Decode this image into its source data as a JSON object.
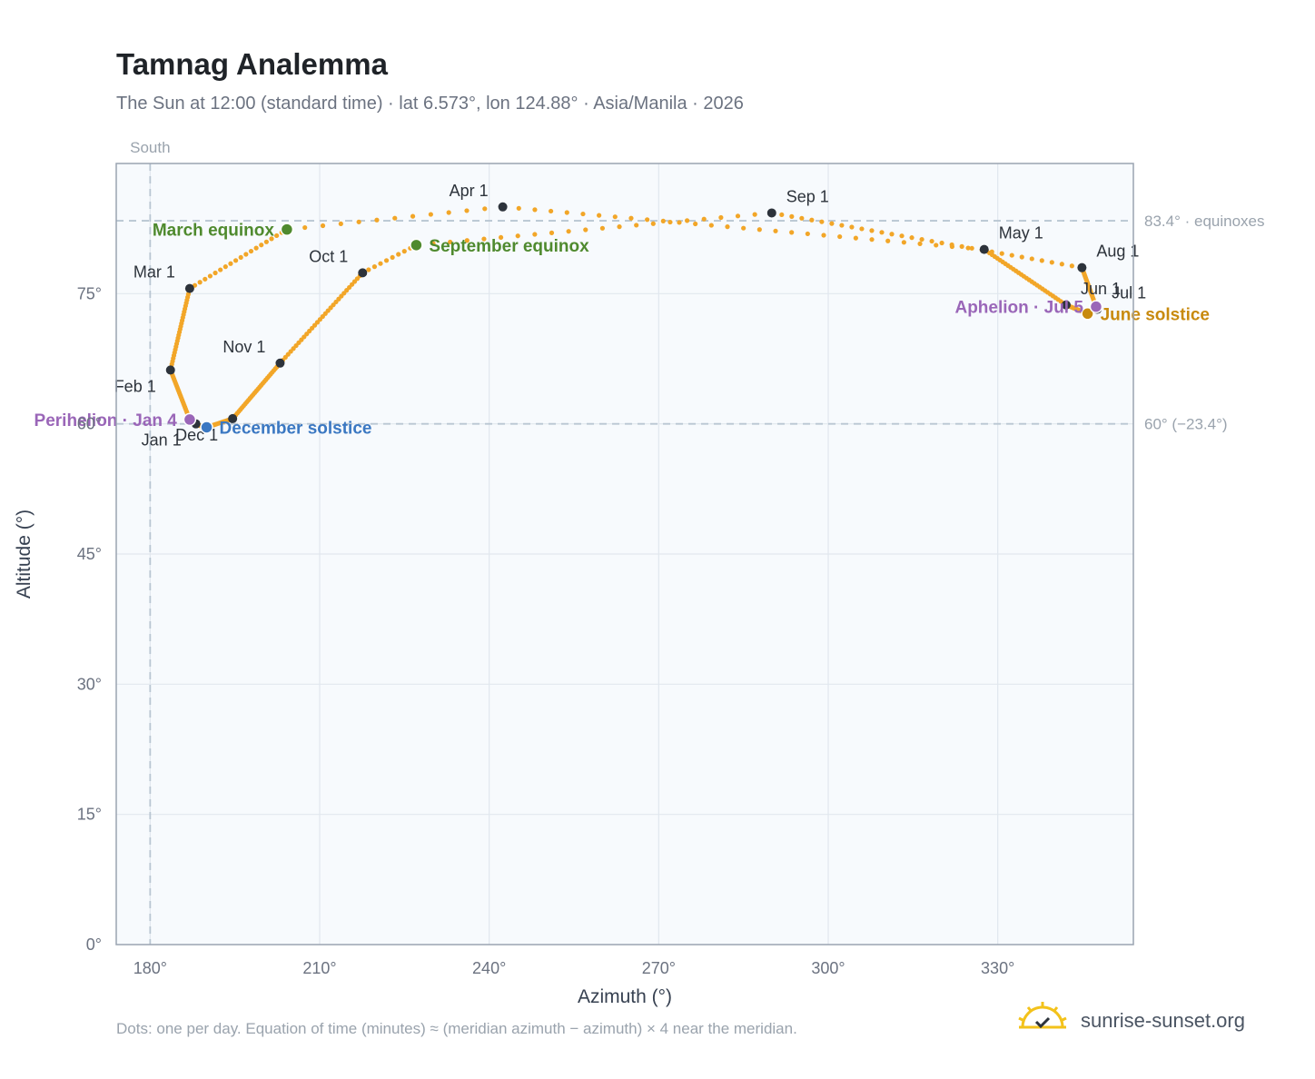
{
  "title": "Tamnag Analemma",
  "subtitle": "The Sun at 12:00 (standard time) · lat 6.573°, lon 124.88° · Asia/Manila · 2026",
  "footnote": "Dots: one per day. Equation of time (minutes) ≈ (meridian azimuth − azimuth) × 4 near the meridian.",
  "brand": "sunrise-sunset.org",
  "colors": {
    "path": "#f2a628",
    "marker": "#2d333b",
    "equinox": "#4f8a2e",
    "december_solstice": "#3b78c2",
    "june_solstice": "#c88a0e",
    "apsis": "#9a66b8",
    "plot_bg": "#f7fafd",
    "grid": "#e1e7ee",
    "frame": "#9aa4b1",
    "ref_line": "#b9c6d2"
  },
  "chart_data": {
    "type": "scatter",
    "title": "Tamnag Analemma",
    "xlabel": "Azimuth (°)",
    "ylabel": "Altitude (°)",
    "xlim": [
      174,
      354
    ],
    "ylim": [
      0,
      90
    ],
    "xticks": [
      "180°",
      "210°",
      "240°",
      "270°",
      "300°",
      "330°"
    ],
    "xtick_values": [
      180,
      210,
      240,
      270,
      300,
      330
    ],
    "yticks": [
      "0°",
      "15°",
      "30°",
      "45°",
      "60°",
      "75°"
    ],
    "ytick_values": [
      0,
      15,
      30,
      45,
      60,
      75
    ],
    "grid": true,
    "meridian": {
      "azimuth": 180,
      "label": "South"
    },
    "reference_lines": [
      {
        "altitude": 83.4,
        "label": "83.4° · equinoxes"
      },
      {
        "altitude": 60,
        "label": "60° (−23.4°)"
      }
    ],
    "path_keypoints": [
      {
        "date": "Jan 1",
        "az": 188.1,
        "alt": 60.0
      },
      {
        "date": "Jan 4",
        "az": 187.0,
        "alt": 60.5
      },
      {
        "date": "Feb 1",
        "az": 183.6,
        "alt": 66.2
      },
      {
        "date": "Mar 1",
        "az": 187.0,
        "alt": 75.6
      },
      {
        "date": "Mar 20",
        "az": 204.2,
        "alt": 82.4
      },
      {
        "date": "Apr 1",
        "az": 242.4,
        "alt": 85.0
      },
      {
        "date": "May 1",
        "az": 327.6,
        "alt": 80.1
      },
      {
        "date": "Jun 1",
        "az": 342.1,
        "alt": 73.7
      },
      {
        "date": "Jun 21",
        "az": 345.9,
        "alt": 72.7
      },
      {
        "date": "Jul 1",
        "az": 347.6,
        "alt": 73.2
      },
      {
        "date": "Jul 5",
        "az": 347.4,
        "alt": 73.5
      },
      {
        "date": "Aug 1",
        "az": 344.9,
        "alt": 78.0
      },
      {
        "date": "Sep 1",
        "az": 290.0,
        "alt": 84.3
      },
      {
        "date": "Sep 22",
        "az": 227.1,
        "alt": 80.6
      },
      {
        "date": "Oct 1",
        "az": 217.6,
        "alt": 77.4
      },
      {
        "date": "Nov 1",
        "az": 203.0,
        "alt": 67.0
      },
      {
        "date": "Dec 1",
        "az": 194.6,
        "alt": 60.6
      },
      {
        "date": "Dec 21",
        "az": 190.0,
        "alt": 59.6
      },
      {
        "date": "Dec 31",
        "az": 188.2,
        "alt": 59.9
      }
    ],
    "month_markers": [
      {
        "label": "Jan 1",
        "az": 188.1,
        "alt": 60.0,
        "anchor": "below-left"
      },
      {
        "label": "Feb 1",
        "az": 183.6,
        "alt": 66.2,
        "anchor": "below-left"
      },
      {
        "label": "Mar 1",
        "az": 187.0,
        "alt": 75.6,
        "anchor": "above-left"
      },
      {
        "label": "Apr 1",
        "az": 242.4,
        "alt": 85.0,
        "anchor": "above-left"
      },
      {
        "label": "May 1",
        "az": 327.6,
        "alt": 80.1,
        "anchor": "above-right"
      },
      {
        "label": "Jun 1",
        "az": 342.1,
        "alt": 73.7,
        "anchor": "above-right"
      },
      {
        "label": "Jul 1",
        "az": 347.6,
        "alt": 73.2,
        "anchor": "above-right"
      },
      {
        "label": "Aug 1",
        "az": 344.9,
        "alt": 78.0,
        "anchor": "above-right"
      },
      {
        "label": "Sep 1",
        "az": 290.0,
        "alt": 84.3,
        "anchor": "above-right"
      },
      {
        "label": "Oct 1",
        "az": 217.6,
        "alt": 77.4,
        "anchor": "above-left"
      },
      {
        "label": "Nov 1",
        "az": 203.0,
        "alt": 67.0,
        "anchor": "above-left"
      },
      {
        "label": "Dec 1",
        "az": 194.6,
        "alt": 60.6,
        "anchor": "below-left"
      }
    ],
    "events": [
      {
        "label": "March equinox",
        "az": 204.2,
        "alt": 82.4,
        "color": "equinox",
        "anchor": "left"
      },
      {
        "label": "September equinox",
        "az": 227.1,
        "alt": 80.6,
        "color": "equinox",
        "anchor": "right"
      },
      {
        "label": "June solstice",
        "az": 345.9,
        "alt": 72.7,
        "color": "june_solstice",
        "anchor": "right"
      },
      {
        "label": "December solstice",
        "az": 190.0,
        "alt": 59.6,
        "color": "december_solstice",
        "anchor": "right"
      },
      {
        "label": "Perihelion · Jan 4",
        "az": 187.0,
        "alt": 60.5,
        "color": "apsis",
        "anchor": "left"
      },
      {
        "label": "Aphelion · Jul 5",
        "az": 347.4,
        "alt": 73.5,
        "color": "apsis",
        "anchor": "left"
      }
    ]
  }
}
